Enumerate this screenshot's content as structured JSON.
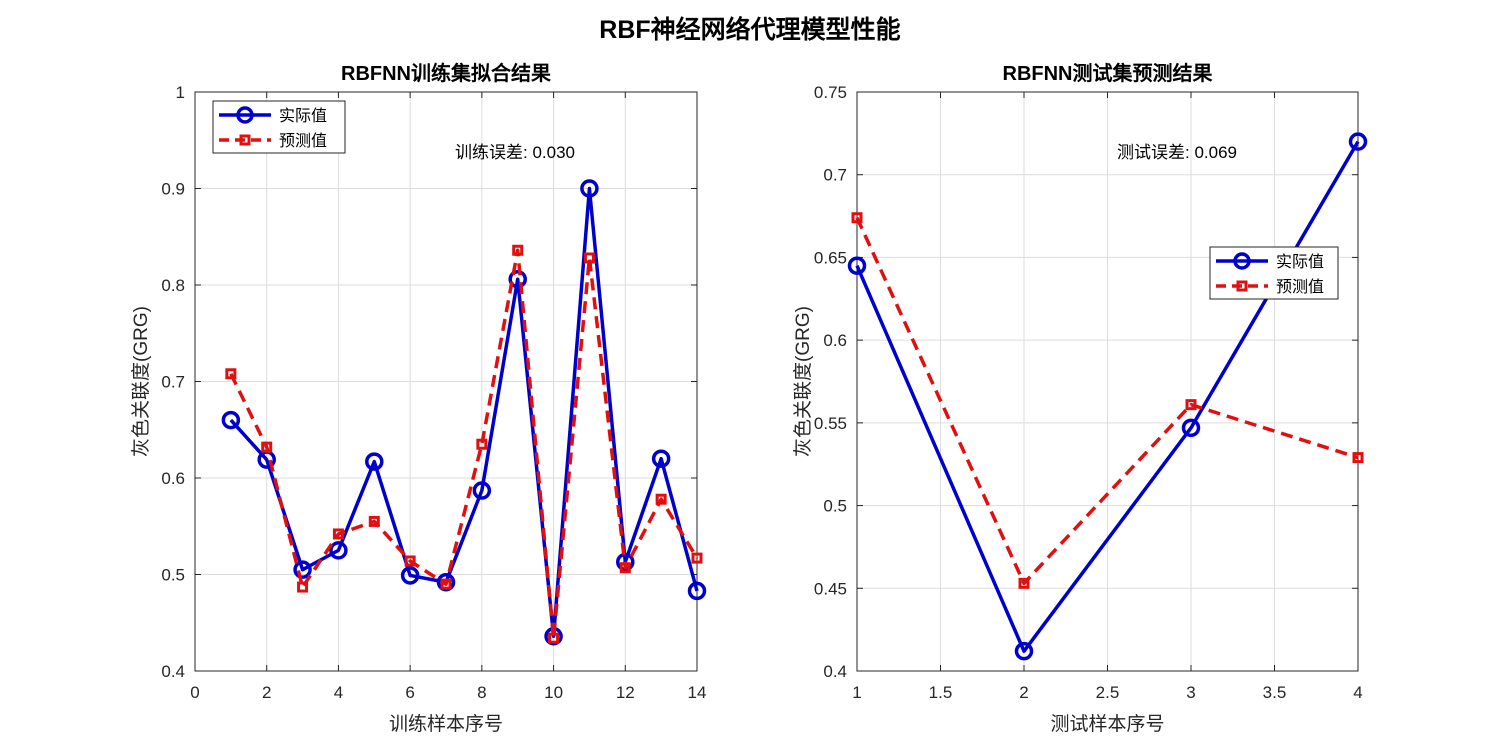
{
  "figure": {
    "title": "RBF神经网络代理模型性能"
  },
  "colors": {
    "actual": "#0000CC",
    "predicted": "#E01010",
    "grid": "#DDDDDD",
    "axis": "#262626"
  },
  "chart_data": [
    {
      "type": "line",
      "title": "RBFNN训练集拟合结果",
      "xlabel": "训练样本序号",
      "ylabel": "灰色关联度(GRG)",
      "xlim": [
        0,
        14
      ],
      "ylim": [
        0.4,
        1.0
      ],
      "xticks": [
        0,
        2,
        4,
        6,
        8,
        10,
        12,
        14
      ],
      "xtick_labels": [
        "0",
        "2",
        "4",
        "6",
        "8",
        "10",
        "12",
        "14"
      ],
      "yticks": [
        0.4,
        0.5,
        0.6,
        0.7,
        0.8,
        0.9,
        1.0
      ],
      "ytick_labels": [
        "0.4",
        "0.5",
        "0.6",
        "0.7",
        "0.8",
        "0.9",
        "1"
      ],
      "grid": true,
      "legend_position": "top-left",
      "annotation": "训练误差: 0.030",
      "x": [
        1,
        2,
        3,
        4,
        5,
        6,
        7,
        8,
        9,
        10,
        11,
        12,
        13,
        14
      ],
      "series": [
        {
          "name": "实际值",
          "style": "solid-circle",
          "values": [
            0.66,
            0.619,
            0.505,
            0.525,
            0.617,
            0.499,
            0.492,
            0.587,
            0.806,
            0.436,
            0.9,
            0.513,
            0.62,
            0.483
          ]
        },
        {
          "name": "预测值",
          "style": "dashed-square",
          "values": [
            0.708,
            0.632,
            0.487,
            0.542,
            0.555,
            0.514,
            0.49,
            0.635,
            0.836,
            0.434,
            0.828,
            0.507,
            0.578,
            0.517
          ]
        }
      ]
    },
    {
      "type": "line",
      "title": "RBFNN测试集预测结果",
      "xlabel": "测试样本序号",
      "ylabel": "灰色关联度(GRG)",
      "xlim": [
        1,
        4
      ],
      "ylim": [
        0.4,
        0.75
      ],
      "xticks": [
        1,
        1.5,
        2,
        2.5,
        3,
        3.5,
        4
      ],
      "xtick_labels": [
        "1",
        "1.5",
        "2",
        "2.5",
        "3",
        "3.5",
        "4"
      ],
      "yticks": [
        0.4,
        0.45,
        0.5,
        0.55,
        0.6,
        0.65,
        0.7,
        0.75
      ],
      "ytick_labels": [
        "0.4",
        "0.45",
        "0.5",
        "0.55",
        "0.6",
        "0.65",
        "0.7",
        "0.75"
      ],
      "grid": true,
      "legend_position": "right",
      "annotation": "测试误差: 0.069",
      "x": [
        1,
        2,
        3,
        4
      ],
      "series": [
        {
          "name": "实际值",
          "style": "solid-circle",
          "values": [
            0.645,
            0.412,
            0.547,
            0.72
          ]
        },
        {
          "name": "预测值",
          "style": "dashed-square",
          "values": [
            0.674,
            0.453,
            0.561,
            0.529
          ]
        }
      ]
    }
  ]
}
